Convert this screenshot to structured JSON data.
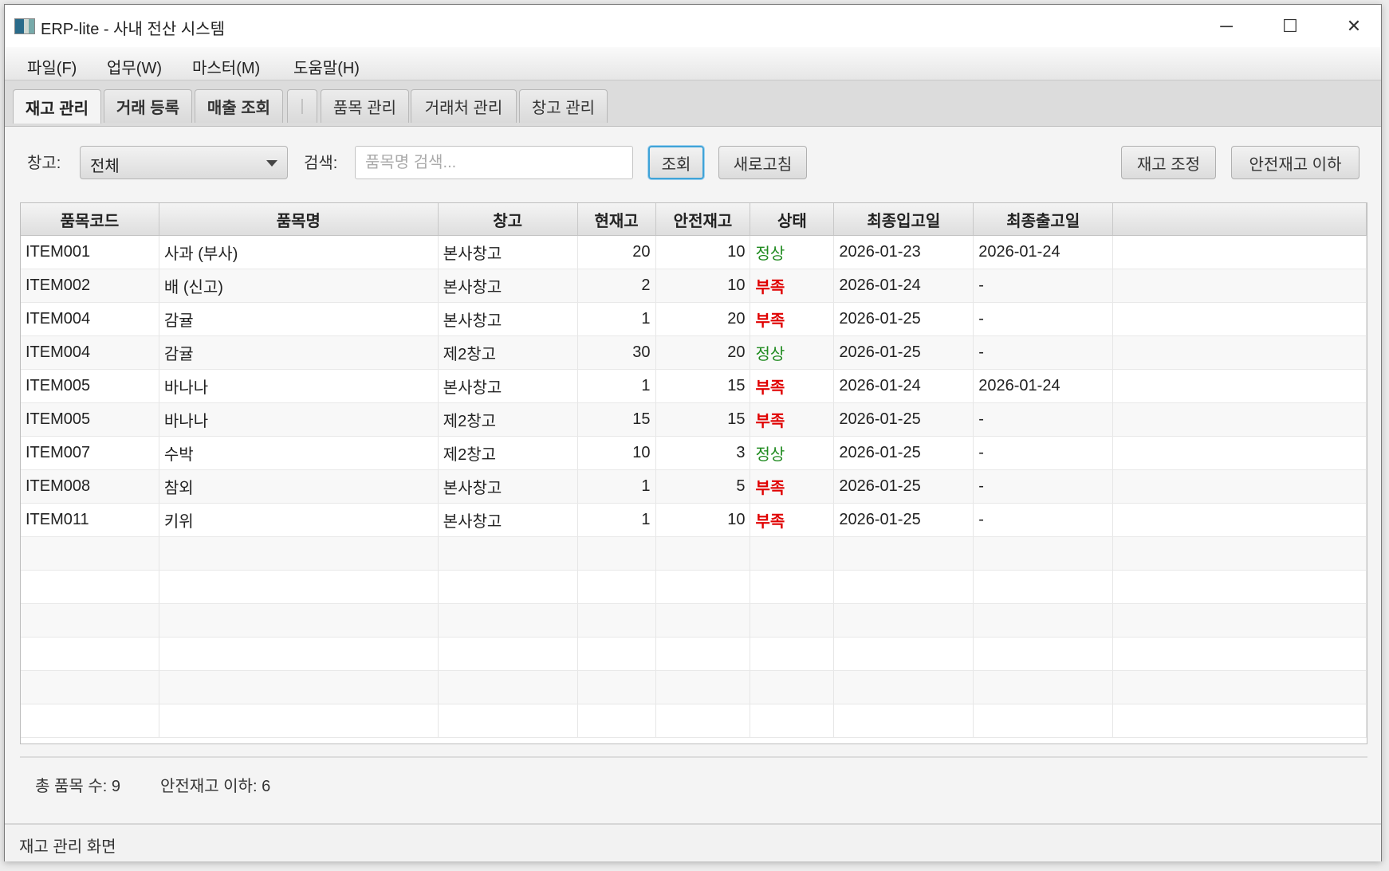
{
  "window": {
    "title": "ERP-lite - 사내 전산 시스템",
    "controls": {
      "minimize": "─",
      "maximize": "☐",
      "close": "✕"
    }
  },
  "menu": [
    "파일(F)",
    "업무(W)",
    "마스터(M)",
    "도움말(H)"
  ],
  "tabs": [
    {
      "label": "재고 관리",
      "selected": true
    },
    {
      "label": "거래 등록"
    },
    {
      "label": "매출 조회"
    },
    {
      "label": "|"
    },
    {
      "label": "품목 관리"
    },
    {
      "label": "거래처 관리"
    },
    {
      "label": "창고 관리"
    }
  ],
  "toolbar": {
    "warehouse_label": "창고:",
    "warehouse_value": "전체",
    "search_label": "검색:",
    "search_placeholder": "품목명 검색...",
    "search_value": "",
    "query": "조회",
    "refresh": "새로고침",
    "adjust": "재고 조정",
    "below_safety": "안전재고 이하"
  },
  "table": {
    "columns": [
      "품목코드",
      "품목명",
      "창고",
      "현재고",
      "안전재고",
      "상태",
      "최종입고일",
      "최종출고일"
    ],
    "rows": [
      [
        "ITEM001",
        "사과 (부사)",
        "본사창고",
        "20",
        "10",
        "정상",
        "2026-01-23",
        "2026-01-24"
      ],
      [
        "ITEM002",
        "배 (신고)",
        "본사창고",
        "2",
        "10",
        "부족",
        "2026-01-24",
        "-"
      ],
      [
        "ITEM004",
        "감귤",
        "본사창고",
        "1",
        "20",
        "부족",
        "2026-01-25",
        "-"
      ],
      [
        "ITEM004",
        "감귤",
        "제2창고",
        "30",
        "20",
        "정상",
        "2026-01-25",
        "-"
      ],
      [
        "ITEM005",
        "바나나",
        "본사창고",
        "1",
        "15",
        "부족",
        "2026-01-24",
        "2026-01-24"
      ],
      [
        "ITEM005",
        "바나나",
        "제2창고",
        "15",
        "15",
        "부족",
        "2026-01-25",
        "-"
      ],
      [
        "ITEM007",
        "수박",
        "제2창고",
        "10",
        "3",
        "정상",
        "2026-01-25",
        "-"
      ],
      [
        "ITEM008",
        "참외",
        "본사창고",
        "1",
        "5",
        "부족",
        "2026-01-25",
        "-"
      ],
      [
        "ITEM011",
        "키위",
        "본사창고",
        "1",
        "10",
        "부족",
        "2026-01-25",
        "-"
      ]
    ]
  },
  "colors": {
    "normal": "#1e8a1e",
    "shortage": "#e00000",
    "focus": "#3fa3d8"
  },
  "summary": {
    "total": "총 품목 수: 9",
    "below": "안전재고 이하: 6"
  },
  "statusbar": "재고 관리 화면"
}
